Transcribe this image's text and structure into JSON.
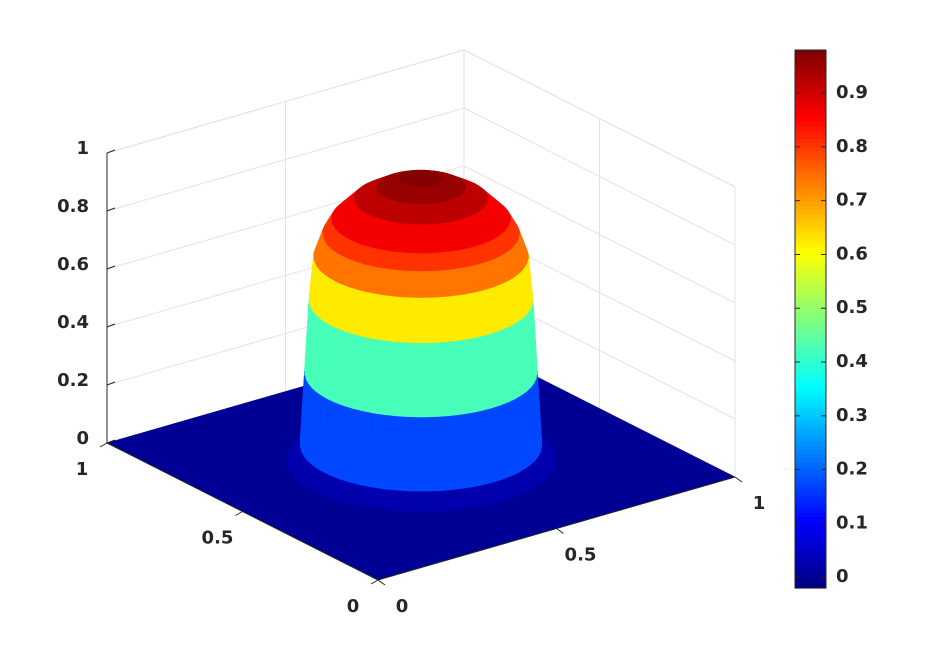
{
  "chart_data": {
    "type": "surface",
    "colormap": "jet",
    "xlim": [
      0,
      1
    ],
    "ylim": [
      0,
      1
    ],
    "zlim": [
      0,
      1
    ],
    "xticks": [
      0,
      0.5,
      1
    ],
    "yticks": [
      0,
      0.5,
      1
    ],
    "zticks": [
      0,
      0.2,
      0.4,
      0.6,
      0.8,
      1
    ],
    "grid": true,
    "surface": {
      "center": [
        0.5,
        0.5
      ],
      "r": [
        0,
        0.05,
        0.1,
        0.15,
        0.2,
        0.22,
        0.24,
        0.25,
        0.26,
        0.27,
        0.3
      ],
      "z": [
        0.98,
        0.97,
        0.94,
        0.9,
        0.83,
        0.78,
        0.7,
        0.55,
        0.3,
        0.05,
        0
      ]
    },
    "colorbar": {
      "clim": [
        -0.02,
        0.98
      ],
      "ticks": [
        0,
        0.1,
        0.2,
        0.3,
        0.4,
        0.5,
        0.6,
        0.7,
        0.8,
        0.9
      ]
    }
  }
}
